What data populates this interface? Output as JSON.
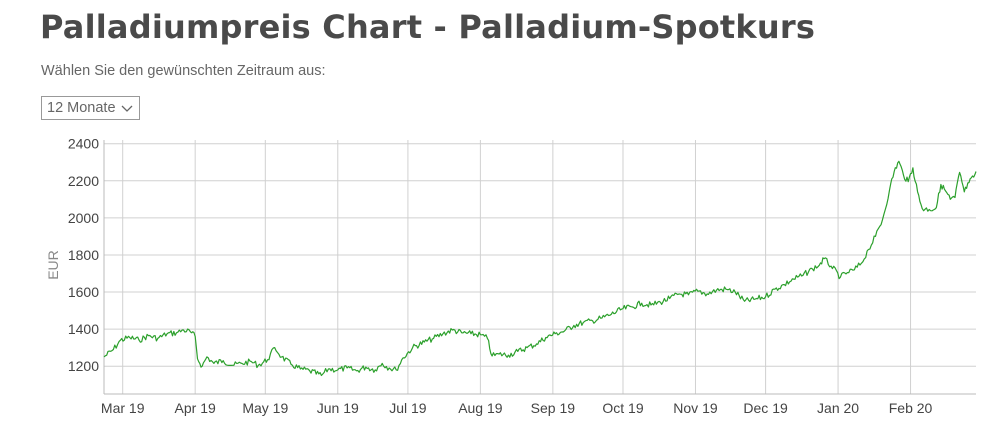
{
  "page": {
    "title": "Palladiumpreis Chart - Palladium-Spotkurs",
    "range_label": "Wählen Sie den gewünschten Zeitraum aus:",
    "range_select_value": "12 Monate"
  },
  "colors": {
    "line": "#2ca02c",
    "grid": "#d0d0d0",
    "axis_text": "#444444",
    "ylabel_text": "#888888"
  },
  "icons": {
    "range_select": "chevron-down-icon"
  },
  "chart_data": {
    "type": "line",
    "title": "",
    "xlabel": "",
    "ylabel": "EUR",
    "ylim": [
      1050,
      2420
    ],
    "yticks": [
      1200,
      1400,
      1600,
      1800,
      2000,
      2200,
      2400
    ],
    "xlim": [
      "2019-02-21",
      "2020-02-29"
    ],
    "xticks": [
      {
        "label": "Mar 19",
        "date": "2019-03-01"
      },
      {
        "label": "Apr 19",
        "date": "2019-04-01"
      },
      {
        "label": "May 19",
        "date": "2019-05-01"
      },
      {
        "label": "Jun 19",
        "date": "2019-06-01"
      },
      {
        "label": "Jul 19",
        "date": "2019-07-01"
      },
      {
        "label": "Aug 19",
        "date": "2019-08-01"
      },
      {
        "label": "Sep 19",
        "date": "2019-09-01"
      },
      {
        "label": "Oct 19",
        "date": "2019-10-01"
      },
      {
        "label": "Nov 19",
        "date": "2019-11-01"
      },
      {
        "label": "Dec 19",
        "date": "2019-12-01"
      },
      {
        "label": "Jan 20",
        "date": "2020-01-01"
      },
      {
        "label": "Feb 20",
        "date": "2020-02-01"
      }
    ],
    "grid": true,
    "series": [
      {
        "name": "",
        "points": [
          [
            "2019-02-21",
            1250
          ],
          [
            "2019-02-25",
            1290
          ],
          [
            "2019-02-28",
            1340
          ],
          [
            "2019-03-04",
            1355
          ],
          [
            "2019-03-08",
            1340
          ],
          [
            "2019-03-12",
            1365
          ],
          [
            "2019-03-16",
            1350
          ],
          [
            "2019-03-20",
            1375
          ],
          [
            "2019-03-24",
            1380
          ],
          [
            "2019-03-27",
            1395
          ],
          [
            "2019-03-30",
            1385
          ],
          [
            "2019-04-01",
            1360
          ],
          [
            "2019-04-02",
            1240
          ],
          [
            "2019-04-04",
            1200
          ],
          [
            "2019-04-06",
            1250
          ],
          [
            "2019-04-09",
            1215
          ],
          [
            "2019-04-13",
            1230
          ],
          [
            "2019-04-17",
            1205
          ],
          [
            "2019-04-21",
            1215
          ],
          [
            "2019-04-25",
            1225
          ],
          [
            "2019-04-28",
            1205
          ],
          [
            "2019-05-02",
            1235
          ],
          [
            "2019-05-05",
            1300
          ],
          [
            "2019-05-08",
            1250
          ],
          [
            "2019-05-12",
            1210
          ],
          [
            "2019-05-16",
            1185
          ],
          [
            "2019-05-20",
            1175
          ],
          [
            "2019-05-25",
            1150
          ],
          [
            "2019-05-28",
            1185
          ],
          [
            "2019-06-01",
            1180
          ],
          [
            "2019-06-05",
            1190
          ],
          [
            "2019-06-09",
            1175
          ],
          [
            "2019-06-13",
            1195
          ],
          [
            "2019-06-17",
            1180
          ],
          [
            "2019-06-20",
            1215
          ],
          [
            "2019-06-23",
            1190
          ],
          [
            "2019-06-26",
            1180
          ],
          [
            "2019-06-29",
            1245
          ],
          [
            "2019-07-03",
            1300
          ],
          [
            "2019-07-08",
            1330
          ],
          [
            "2019-07-12",
            1350
          ],
          [
            "2019-07-16",
            1375
          ],
          [
            "2019-07-20",
            1395
          ],
          [
            "2019-07-24",
            1380
          ],
          [
            "2019-07-28",
            1375
          ],
          [
            "2019-08-01",
            1370
          ],
          [
            "2019-08-04",
            1350
          ],
          [
            "2019-08-06",
            1255
          ],
          [
            "2019-08-09",
            1265
          ],
          [
            "2019-08-13",
            1260
          ],
          [
            "2019-08-17",
            1280
          ],
          [
            "2019-08-21",
            1300
          ],
          [
            "2019-08-25",
            1320
          ],
          [
            "2019-08-29",
            1355
          ],
          [
            "2019-09-02",
            1375
          ],
          [
            "2019-09-06",
            1390
          ],
          [
            "2019-09-10",
            1420
          ],
          [
            "2019-09-14",
            1435
          ],
          [
            "2019-09-18",
            1445
          ],
          [
            "2019-09-22",
            1460
          ],
          [
            "2019-09-26",
            1480
          ],
          [
            "2019-10-01",
            1510
          ],
          [
            "2019-10-05",
            1520
          ],
          [
            "2019-10-09",
            1540
          ],
          [
            "2019-10-13",
            1530
          ],
          [
            "2019-10-17",
            1545
          ],
          [
            "2019-10-21",
            1565
          ],
          [
            "2019-10-25",
            1590
          ],
          [
            "2019-10-29",
            1585
          ],
          [
            "2019-11-02",
            1605
          ],
          [
            "2019-11-06",
            1590
          ],
          [
            "2019-11-10",
            1610
          ],
          [
            "2019-11-14",
            1615
          ],
          [
            "2019-11-18",
            1600
          ],
          [
            "2019-11-22",
            1550
          ],
          [
            "2019-11-26",
            1560
          ],
          [
            "2019-12-01",
            1575
          ],
          [
            "2019-12-05",
            1615
          ],
          [
            "2019-12-09",
            1640
          ],
          [
            "2019-12-13",
            1670
          ],
          [
            "2019-12-17",
            1690
          ],
          [
            "2019-12-21",
            1725
          ],
          [
            "2019-12-24",
            1745
          ],
          [
            "2019-12-26",
            1780
          ],
          [
            "2019-12-29",
            1740
          ],
          [
            "2020-01-02",
            1680
          ],
          [
            "2020-01-05",
            1705
          ],
          [
            "2020-01-08",
            1720
          ],
          [
            "2020-01-11",
            1755
          ],
          [
            "2020-01-14",
            1830
          ],
          [
            "2020-01-17",
            1900
          ],
          [
            "2020-01-20",
            1990
          ],
          [
            "2020-01-23",
            2150
          ],
          [
            "2020-01-25",
            2250
          ],
          [
            "2020-01-27",
            2305
          ],
          [
            "2020-01-29",
            2230
          ],
          [
            "2020-01-31",
            2195
          ],
          [
            "2020-02-02",
            2270
          ],
          [
            "2020-02-04",
            2140
          ],
          [
            "2020-02-06",
            2050
          ],
          [
            "2020-02-09",
            2045
          ],
          [
            "2020-02-12",
            2055
          ],
          [
            "2020-02-14",
            2180
          ],
          [
            "2020-02-16",
            2145
          ],
          [
            "2020-02-18",
            2100
          ],
          [
            "2020-02-20",
            2110
          ],
          [
            "2020-02-22",
            2245
          ],
          [
            "2020-02-24",
            2140
          ],
          [
            "2020-02-26",
            2190
          ],
          [
            "2020-02-28",
            2220
          ],
          [
            "2020-02-29",
            2250
          ]
        ]
      }
    ]
  }
}
